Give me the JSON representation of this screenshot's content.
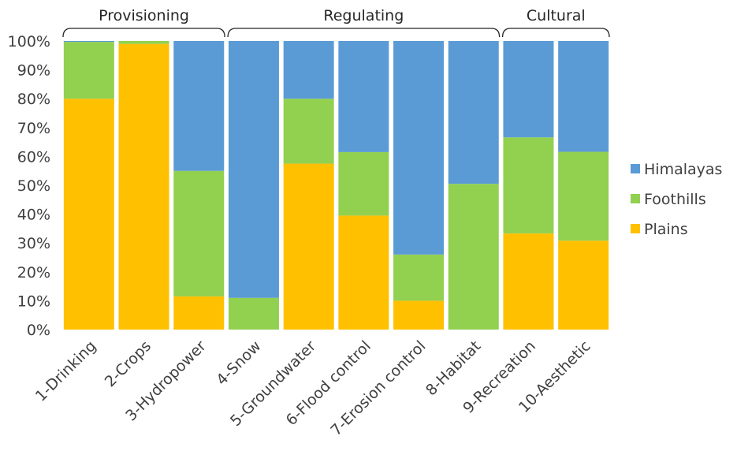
{
  "chart_data": {
    "type": "bar",
    "stacked": true,
    "percent": true,
    "categories": [
      "1-Drinking",
      "2-Crops",
      "3-Hydropower",
      "4-Snow",
      "5-Groundwater",
      "6-Flood control",
      "7-Erosion control",
      "8-Habitat",
      "9-Recreation",
      "10-Aesthetic"
    ],
    "series": [
      {
        "name": "Plains",
        "color": "#FFC000",
        "values": [
          80,
          99,
          11.5,
          0,
          57.5,
          39.5,
          10,
          0,
          33.3,
          30.8
        ]
      },
      {
        "name": "Foothills",
        "color": "#92D050",
        "values": [
          19.7,
          1,
          43.5,
          11,
          22.5,
          22,
          16,
          50.5,
          33.3,
          30.8
        ]
      },
      {
        "name": "Himalayas",
        "color": "#5B9BD5",
        "values": [
          0.3,
          0,
          45,
          89,
          20,
          38.5,
          74,
          49.5,
          33.4,
          38.4
        ]
      }
    ],
    "groups": [
      {
        "label": "Provisioning",
        "start": 0,
        "end": 2
      },
      {
        "label": "Regulating",
        "start": 3,
        "end": 7
      },
      {
        "label": "Cultural",
        "start": 8,
        "end": 9
      }
    ],
    "yticks": [
      "0%",
      "10%",
      "20%",
      "30%",
      "40%",
      "50%",
      "60%",
      "70%",
      "80%",
      "90%",
      "100%"
    ],
    "ylim": [
      0,
      100
    ],
    "legend_order": [
      "Himalayas",
      "Foothills",
      "Plains"
    ],
    "legend_position": "right",
    "grid": false,
    "title": "",
    "xlabel": "",
    "ylabel": ""
  }
}
